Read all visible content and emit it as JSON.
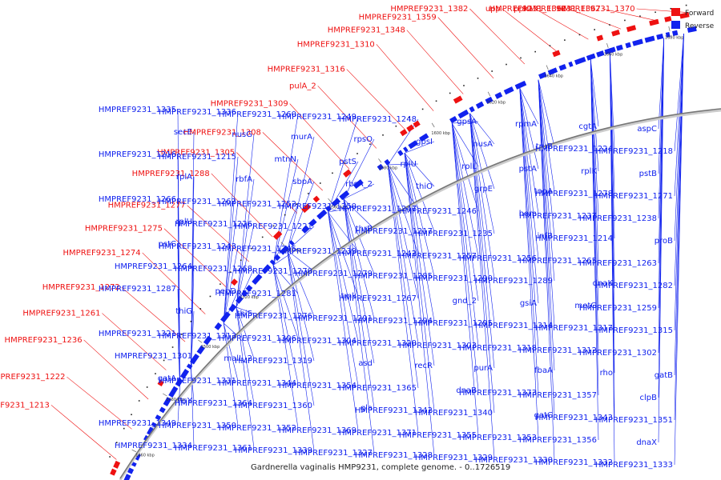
{
  "caption": "Gardnerella vaginalis HMP9231, complete genome. - 0..1726519",
  "legend": [
    {
      "label": "Forward",
      "color": "#ee1111"
    },
    {
      "label": "Reverse",
      "color": "#1122ee"
    }
  ],
  "colors": {
    "forward": "#ee1111",
    "reverse": "#1122ee",
    "backbone": "#777777"
  },
  "ticks": [
    "1460 kbp",
    "1480 kbp",
    "1500 kbp",
    "1520 kbp",
    "1540 kbp",
    "1560 kbp",
    "1580 kbp",
    "1600 kbp",
    "1620 kbp",
    "1640 kbp",
    "1660 kbp",
    "1680 kbp"
  ],
  "labels_forward": [
    "HMPREF9231_1370",
    "HMPREF9231_1367",
    "HMPREF9231_1366",
    "ppk1",
    "upp",
    "HMPREF9231_1382",
    "HMPREF9231_1359",
    "HMPREF9231_1348",
    "HMPREF9231_1310",
    "HMPREF9231_1316",
    "pulA_2",
    "HMPREF9231_1309",
    "HMPREF9231_1308",
    "HMPREF9231_1305",
    "HMPREF9231_1288",
    "HMPREF9231_1277",
    "HMPREF9231_1275",
    "HMPREF9231_1274",
    "HMPREF9231_1272",
    "HMPREF9231_1261",
    "HMPREF9231_1236",
    "HMPREF9231_1222",
    "HMPREF9231_1213"
  ],
  "labels_reverse": [
    "HMPREF9231_1335",
    "HMPREF9231_1336",
    "HMPREF9231_1260",
    "HMPREF9231_1249",
    "HMPREF9231_1248",
    "gpsA",
    "rpmA",
    "cgtA",
    "aspC",
    "secE",
    "nusG",
    "murA",
    "rpsO",
    "gpsI",
    "nusA",
    "truB",
    "HMPREF9231_1224",
    "HMPREF9231_1218",
    "HMPREF9231_1216",
    "HMPREF9231_1215",
    "mtnN",
    "pstS",
    "rplU",
    "rplL",
    "pstA",
    "rplK",
    "pstB",
    "rplA",
    "rbfA",
    "sbpA",
    "rbsA_2",
    "thiO",
    "grpE",
    "topA",
    "HMPREF9231_1278",
    "HMPREF9231_1271",
    "HMPREF9231_1266",
    "HMPREF9231_1262",
    "HMPREF9231_1252",
    "HMPREF9231_1250",
    "HMPREF9231_1247",
    "HMPREF9231_1246",
    "hom",
    "HMPREF9231_1237",
    "HMPREF9231_1238",
    "rplU",
    "HMPREF9231_1226",
    "HMPREF9231_1221",
    "thrB",
    "HMPREF9231_1217",
    "HMPREF9231_1235",
    "infB",
    "HMPREF9231_1214",
    "proB",
    "pstC",
    "HMPREF9231_1243",
    "HMPREF9231_1245",
    "HMPREF9231_1239",
    "HMPREF9231_1242",
    "HMPREF9231_1257",
    "HMPREF9231_1256",
    "HMPREF9231_1265",
    "HMPREF9231_1263",
    "HMPREF9231_1264",
    "HMPREF9231_1268",
    "HMPREF9231_1270",
    "HMPREF9231_1279",
    "HMPREF9231_1285",
    "HMPREF9231_1290",
    "HMPREF9231_1289",
    "dnaK",
    "HMPREF9231_1282",
    "HMPREF9231_1287",
    "pepD",
    "HMPREF9231_1281",
    "tmk",
    "HMPREF9231_1267",
    "gnd_2",
    "gsiA",
    "metG",
    "HMPREF9231_1259",
    "thiG",
    "thiS",
    "HMPREF9231_1276",
    "HMPREF9231_1291",
    "HMPREF9231_1294",
    "HMPREF9231_1295",
    "HMPREF9231_1314",
    "HMPREF9231_1317",
    "HMPREF9231_1315",
    "HMPREF9231_1321",
    "HMPREF9231_1313",
    "HMPREF9231_1306",
    "HMPREF9231_1304",
    "HMPREF9231_1320",
    "HMPREF9231_1303",
    "HMPREF9231_1318",
    "HMPREF9231_1312",
    "HMPREF9231_1302",
    "HMPREF9231_1301",
    "malL_2",
    "HMPREF9231_1319",
    "asd",
    "recR",
    "purA",
    "fbaA",
    "rho",
    "gatB",
    "gatA",
    "HMPREF9231_1331",
    "HMPREF9231_1344",
    "HMPREF9231_1354",
    "HMPREF9231_1365",
    "dnaB",
    "HMPREF9231_1373",
    "HMPREF9231_1357",
    "clpB",
    "ftsY",
    "HMPREF9231_1364",
    "HMPREF9231_1360",
    "gla",
    "HMPREF9231_1342",
    "HMPREF9231_1340",
    "gatC",
    "HMPREF9231_1343",
    "HMPREF9231_1351",
    "HMPREF9231_1349",
    "HMPREF9231_1350",
    "HMPREF9231_1352",
    "HMPREF9231_1369",
    "HMPREF9231_1371",
    "HMPREF9231_1355",
    "HMPREF9231_1353",
    "HMPREF9231_1356",
    "dnaX",
    "HMPREF9231_1334",
    "HMPREF9231_1361",
    "HMPREF9231_1339",
    "HMPREF9231_1327",
    "HMPREF9231_1328",
    "HMPREF9231_1329",
    "HMPREF9231_1330",
    "HMPREF9231_1332",
    "HMPREF9231_1333"
  ]
}
